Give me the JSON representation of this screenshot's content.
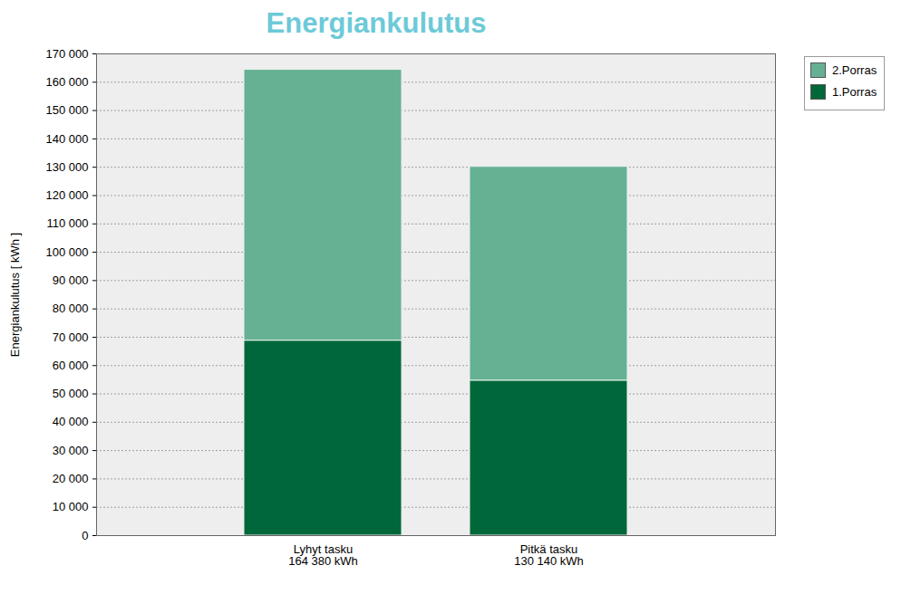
{
  "chart_data": {
    "type": "bar",
    "title": "Energiankulutus",
    "y_label": "Energiankulutus [ kWh ]",
    "categories": [
      "Lyhyt tasku\n164 380 kWh",
      "Pitkä tasku\n130 140 kWh"
    ],
    "series": [
      {
        "name": "1.Porras",
        "color": "#00673a",
        "values": [
          68800,
          54700
        ]
      },
      {
        "name": "2.Porras",
        "color": "#66b094",
        "values": [
          95580,
          75440
        ]
      }
    ],
    "stacked": true,
    "ylim": [
      0,
      170000
    ],
    "yticks": [
      0,
      {
        "value": 10000,
        "label": "10 000"
      },
      {
        "value": 20000,
        "label": "20 000"
      },
      {
        "value": 30000,
        "label": "30 000"
      },
      {
        "value": 40000,
        "label": "40 000"
      },
      {
        "value": 50000,
        "label": "50 000"
      },
      {
        "value": 60000,
        "label": "60 000"
      },
      {
        "value": 70000,
        "label": "70 000"
      },
      {
        "value": 80000,
        "label": "80 000"
      },
      {
        "value": 90000,
        "label": "90 000"
      },
      {
        "value": 100000,
        "label": "100 000"
      },
      {
        "value": 110000,
        "label": "110 000"
      },
      {
        "value": 120000,
        "label": "120 000"
      },
      {
        "value": 130000,
        "label": "130 000"
      },
      {
        "value": 140000,
        "label": "140 000"
      },
      {
        "value": 150000,
        "label": "150 000"
      },
      {
        "value": 160000,
        "label": "160 000"
      },
      {
        "value": 170000,
        "label": "170 000"
      }
    ],
    "grid": true,
    "legend": "right"
  }
}
